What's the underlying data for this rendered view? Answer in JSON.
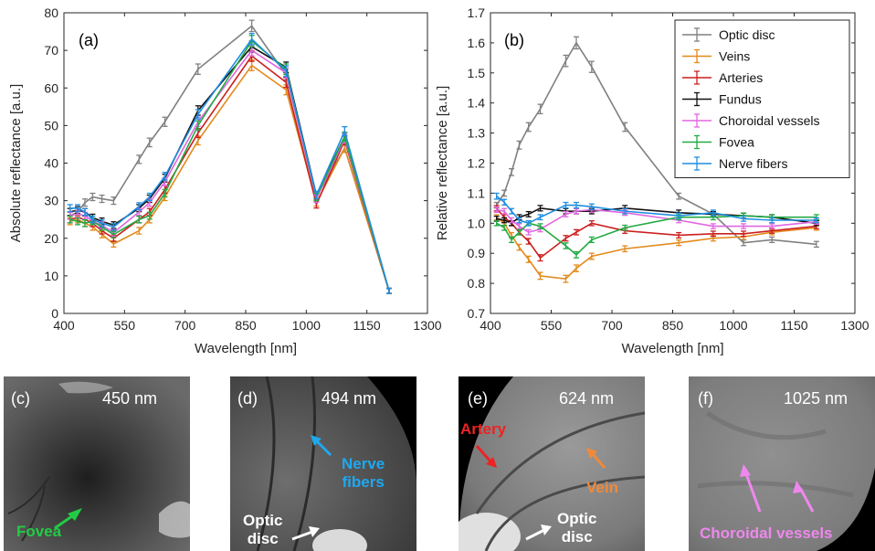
{
  "chart_data": [
    {
      "type": "line",
      "panel_label": "(a)",
      "xlabel": "Wavelength [nm]",
      "ylabel": "Absolute reflectance [a.u.]",
      "xlim": [
        400,
        1300
      ],
      "ylim": [
        0,
        80
      ],
      "xticks": [
        400,
        550,
        700,
        850,
        1000,
        1150,
        1300
      ],
      "yticks": [
        0,
        10,
        20,
        30,
        40,
        50,
        60,
        70,
        80
      ],
      "x": [
        415,
        434,
        452,
        471,
        494,
        523,
        586,
        612,
        650,
        732,
        865,
        950,
        1025,
        1095,
        1205
      ],
      "series": [
        {
          "name": "Optic disc",
          "color": "#808080",
          "values": [
            26,
            27,
            29.5,
            31,
            30.5,
            30,
            41,
            45.5,
            51,
            65,
            76.5,
            63.5,
            31,
            44,
            6
          ]
        },
        {
          "name": "Veins",
          "color": "#e28a1c",
          "values": [
            24.5,
            25,
            24,
            23,
            21,
            18.5,
            22,
            25,
            31,
            46,
            66,
            59.5,
            29.5,
            44,
            6
          ]
        },
        {
          "name": "Arteries",
          "color": "#cc1f1f",
          "values": [
            25,
            25.5,
            25,
            24,
            22,
            20,
            25,
            27,
            33,
            48,
            68.5,
            61.5,
            29,
            46,
            6
          ]
        },
        {
          "name": "Fundus",
          "color": "#111111",
          "values": [
            27,
            27.5,
            27,
            25.5,
            24.5,
            23.5,
            28,
            30.5,
            36,
            54,
            71,
            65.5,
            31.5,
            47,
            6
          ]
        },
        {
          "name": "Choroidal vessels",
          "color": "#e066e0",
          "values": [
            26,
            26.5,
            26,
            24.5,
            23.5,
            21.5,
            27,
            29.5,
            35,
            51,
            70,
            64,
            30.5,
            46.5,
            6
          ]
        },
        {
          "name": "Fovea",
          "color": "#22aa44",
          "values": [
            25,
            24.5,
            24,
            24.5,
            23,
            21,
            25,
            26,
            32,
            50,
            72.5,
            65,
            31,
            47,
            6
          ]
        },
        {
          "name": "Nerve fibers",
          "color": "#1f8ee0",
          "values": [
            28,
            28,
            27,
            25,
            24,
            23,
            28.5,
            31,
            36.5,
            53,
            73,
            64.5,
            31.5,
            48.5,
            6
          ]
        }
      ]
    },
    {
      "type": "line",
      "panel_label": "(b)",
      "xlabel": "Wavelength [nm]",
      "ylabel": "Relative reflectance [a.u.]",
      "xlim": [
        400,
        1300
      ],
      "ylim": [
        0.7,
        1.7
      ],
      "xticks": [
        400,
        550,
        700,
        850,
        1000,
        1150,
        1300
      ],
      "yticks": [
        "0.7",
        "0.8",
        "0.9",
        "1.0",
        "1.1",
        "1.2",
        "1.3",
        "1.4",
        "1.5",
        "1.6",
        "1.7"
      ],
      "legend": "top-right",
      "x": [
        415,
        434,
        452,
        471,
        494,
        523,
        586,
        612,
        650,
        732,
        865,
        950,
        1025,
        1095,
        1205
      ],
      "series": [
        {
          "name": "Optic disc",
          "color": "#808080",
          "values": [
            1.06,
            1.1,
            1.17,
            1.26,
            1.32,
            1.38,
            1.54,
            1.6,
            1.52,
            1.32,
            1.09,
            1.03,
            0.935,
            0.945,
            0.93
          ]
        },
        {
          "name": "Veins",
          "color": "#e28a1c",
          "values": [
            1.02,
            1.0,
            0.96,
            0.92,
            0.88,
            0.825,
            0.815,
            0.85,
            0.89,
            0.915,
            0.935,
            0.95,
            0.955,
            0.97,
            0.985
          ]
        },
        {
          "name": "Arteries",
          "color": "#cc1f1f",
          "values": [
            1.05,
            1.02,
            1.0,
            0.97,
            0.94,
            0.885,
            0.95,
            0.97,
            1.0,
            0.975,
            0.96,
            0.965,
            0.965,
            0.975,
            0.99
          ]
        },
        {
          "name": "Fundus",
          "color": "#111111",
          "values": [
            1.015,
            1.01,
            1.0,
            1.02,
            1.03,
            1.05,
            1.04,
            1.04,
            1.04,
            1.05,
            1.035,
            1.03,
            1.025,
            1.02,
            1.0
          ]
        },
        {
          "name": "Choroidal vessels",
          "color": "#e066e0",
          "values": [
            1.045,
            1.04,
            1.01,
            0.99,
            0.97,
            0.98,
            1.03,
            1.04,
            1.045,
            1.035,
            1.01,
            0.99,
            0.99,
            0.99,
            1.005
          ]
        },
        {
          "name": "Fovea",
          "color": "#22aa44",
          "values": [
            1.0,
            0.985,
            0.945,
            0.97,
            1.0,
            0.99,
            0.925,
            0.895,
            0.945,
            0.985,
            1.02,
            1.02,
            1.025,
            1.02,
            1.02
          ]
        },
        {
          "name": "Nerve fibers",
          "color": "#1f8ee0",
          "values": [
            1.09,
            1.07,
            1.04,
            1.01,
            1.0,
            1.02,
            1.06,
            1.06,
            1.055,
            1.04,
            1.025,
            1.035,
            1.015,
            1.01,
            1.01
          ]
        }
      ]
    }
  ],
  "image_panels": [
    {
      "label": "(c)",
      "wavelength": "450 nm",
      "annotations": [
        {
          "text": "Fovea",
          "color": "#22cc44"
        }
      ]
    },
    {
      "label": "(d)",
      "wavelength": "494 nm",
      "annotations": [
        {
          "text": "Nerve\nfibers",
          "color": "#1fa8ee"
        },
        {
          "text": "Optic\ndisc",
          "color": "#ffffff"
        }
      ]
    },
    {
      "label": "(e)",
      "wavelength": "624 nm",
      "annotations": [
        {
          "text": "Artery",
          "color": "#ee2222"
        },
        {
          "text": "Vein",
          "color": "#f08a3a"
        },
        {
          "text": "Optic\ndisc",
          "color": "#ffffff"
        }
      ]
    },
    {
      "label": "(f)",
      "wavelength": "1025 nm",
      "annotations": [
        {
          "text": "Choroidal vessels",
          "color": "#ee88ee"
        }
      ]
    }
  ]
}
